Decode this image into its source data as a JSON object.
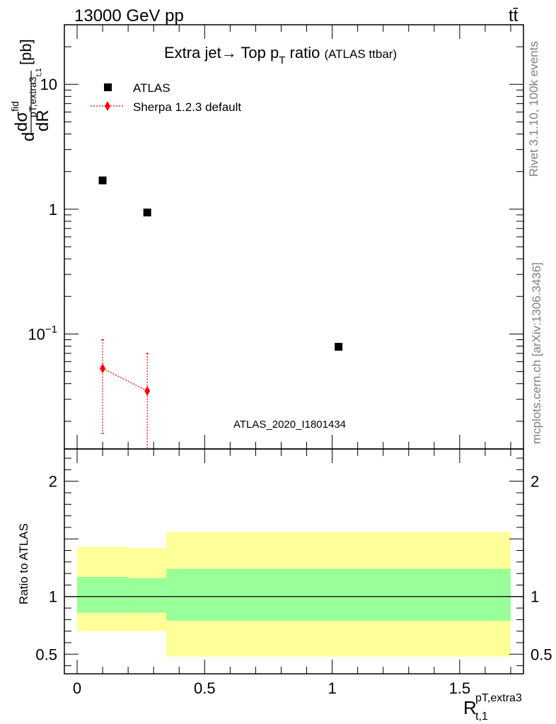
{
  "header": {
    "left": "13000 GeV pp",
    "right": "tt̄"
  },
  "side_labels": {
    "rivet": "Rivet 3.1.10,  100k events",
    "mcplots": "mcplots.cern.ch [arXiv:1306.3436]"
  },
  "colors": {
    "band_outer": "#ffff99",
    "band_inner": "#99ff99",
    "sherpa": "#ff0000",
    "atlas": "#000000",
    "watermark": "#999999"
  },
  "chart_data": [
    {
      "type": "scatter",
      "title_main": "Extra jet→ Top p",
      "title_sub": "T",
      "title_tail": " ratio ",
      "title_small": "(ATLAS ttbar)",
      "ylabel": "dσ/dR [pb]",
      "ylabel_parts": {
        "d1": "d",
        "sigma": "dσ",
        "sup": "fid",
        "sub": "pT,extra3",
        "sub2": "t,1",
        "dR": "dR",
        "unit": " [pb]"
      },
      "watermark": "ATLAS_2020_I1801434",
      "yscale": "log",
      "ylim": [
        0.012,
        30
      ],
      "xlim": [
        -0.05,
        1.75
      ],
      "yticks": [
        {
          "value": 0.1,
          "base": "10",
          "exp": "−1"
        },
        {
          "value": 1,
          "label": "1"
        },
        {
          "value": 10,
          "label": "10"
        }
      ],
      "legend_placement": "top-left",
      "series": [
        {
          "name": "ATLAS",
          "marker": "square",
          "points": [
            {
              "x": 0.1,
              "y": 1.7
            },
            {
              "x": 0.275,
              "y": 0.94
            },
            {
              "x": 1.025,
              "y": 0.079
            }
          ]
        },
        {
          "name": "Sherpa 1.2.3 default",
          "marker": "diamond",
          "points": [
            {
              "x": 0.1,
              "y": 0.053,
              "ylo": 0.016,
              "yhi": 0.09
            },
            {
              "x": 0.275,
              "y": 0.035,
              "ylo": 0.008,
              "yhi": 0.07
            }
          ]
        }
      ]
    },
    {
      "type": "area",
      "ylabel": "Ratio to ATLAS",
      "xlabel_main": "R",
      "xlabel_sup": "pT,extra3",
      "xlabel_sub": "t,1",
      "xlim": [
        -0.05,
        1.75
      ],
      "ylim": [
        0.33,
        2.28
      ],
      "reference_line": 1,
      "yticks": [
        {
          "value": 0.5,
          "label": "0.5"
        },
        {
          "value": 1,
          "label": "1"
        },
        {
          "value": 2,
          "label": "2"
        }
      ],
      "xticks": [
        {
          "value": 0,
          "label": "0"
        },
        {
          "value": 0.5,
          "label": "0.5"
        },
        {
          "value": 1,
          "label": "1"
        },
        {
          "value": 1.5,
          "label": "1.5"
        }
      ],
      "bands": [
        {
          "x0": 0.0,
          "x1": 0.2,
          "outer": [
            0.7,
            1.43
          ],
          "inner": [
            0.86,
            1.17
          ]
        },
        {
          "x0": 0.2,
          "x1": 0.35,
          "outer": [
            0.7,
            1.42
          ],
          "inner": [
            0.86,
            1.16
          ]
        },
        {
          "x0": 0.35,
          "x1": 1.7,
          "outer": [
            0.48,
            1.56
          ],
          "inner": [
            0.79,
            1.24
          ]
        }
      ]
    }
  ]
}
